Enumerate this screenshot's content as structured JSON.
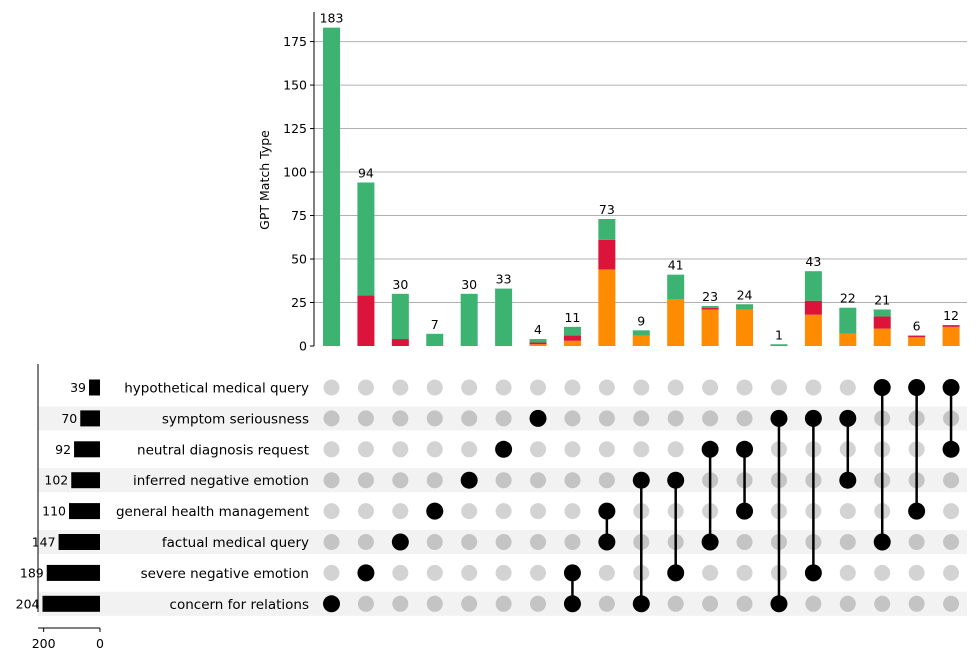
{
  "chart_data": {
    "type": "upset",
    "ylabel": "GPT Match Type",
    "ylim": [
      0,
      192
    ],
    "yticks": [
      0,
      25,
      50,
      75,
      100,
      125,
      150,
      175
    ],
    "set_axis_ticks": [
      200,
      0
    ],
    "set_axis_max": 220,
    "colors": {
      "green": "#3cb371",
      "red": "#dc143c",
      "orange": "#ff8c00",
      "dot_on": "#000000",
      "dot_off_a": "#d3d3d3",
      "dot_off_b": "#c4c4c4",
      "stripe": "#f2f2f2",
      "grid": "#b0b0b0"
    },
    "sets": [
      {
        "name": "hypothetical medical query",
        "size": 39
      },
      {
        "name": "symptom seriousness",
        "size": 70
      },
      {
        "name": "neutral diagnosis request",
        "size": 92
      },
      {
        "name": "inferred negative emotion",
        "size": 102
      },
      {
        "name": "general health management",
        "size": 110
      },
      {
        "name": "factual medical query",
        "size": 147
      },
      {
        "name": "severe negative emotion",
        "size": 189
      },
      {
        "name": "concern for relations",
        "size": 204
      }
    ],
    "series": [
      {
        "name": "orange",
        "color": "#ff8c00",
        "values": [
          0,
          0,
          0,
          0,
          0,
          0,
          1,
          3,
          44,
          6,
          27,
          21,
          21,
          0,
          18,
          7,
          10,
          5,
          11
        ]
      },
      {
        "name": "red",
        "color": "#dc143c",
        "values": [
          0,
          29,
          4,
          0,
          0,
          0,
          1,
          3,
          17,
          0,
          0,
          1,
          0,
          0,
          8,
          0,
          7,
          1,
          1
        ]
      },
      {
        "name": "green",
        "color": "#3cb371",
        "values": [
          183,
          65,
          26,
          7,
          30,
          33,
          2,
          5,
          12,
          3,
          14,
          1,
          3,
          1,
          17,
          15,
          4,
          0,
          0
        ]
      }
    ],
    "totals": [
      183,
      94,
      30,
      7,
      30,
      33,
      4,
      11,
      73,
      9,
      41,
      23,
      24,
      1,
      43,
      22,
      21,
      6,
      12
    ],
    "intersections": [
      [
        7
      ],
      [
        6
      ],
      [
        5
      ],
      [
        4
      ],
      [
        3
      ],
      [
        2
      ],
      [
        1
      ],
      [
        6,
        7
      ],
      [
        4,
        5
      ],
      [
        3,
        7
      ],
      [
        3,
        6
      ],
      [
        2,
        5
      ],
      [
        2,
        4
      ],
      [
        1,
        7
      ],
      [
        1,
        6
      ],
      [
        1,
        3
      ],
      [
        0,
        5
      ],
      [
        0,
        4
      ],
      [
        0,
        2
      ]
    ]
  }
}
